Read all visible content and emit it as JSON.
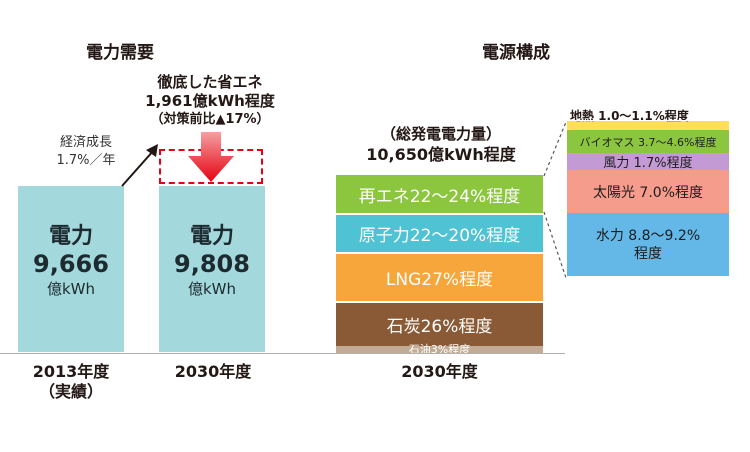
{
  "demand": {
    "title": "電力需要",
    "bars": [
      {
        "head": "電力",
        "value": "9,666",
        "unit": "億kWh",
        "year": "2013年度",
        "note": "（実績）"
      },
      {
        "head": "電力",
        "value": "9,808",
        "unit": "億kWh",
        "year": "2030年度",
        "note": ""
      }
    ],
    "growth": {
      "line1": "経済成長",
      "line2": "1.7%／年"
    },
    "saving": {
      "line1": "徹底した省エネ",
      "line2": "1,961億kWh程度",
      "line3": "（対策前比▲17%）"
    },
    "colors": {
      "bar": "#a3d9dc",
      "arrow": "#e60012"
    }
  },
  "supply": {
    "title": "電源構成",
    "total_line1": "（総発電電力量）",
    "total_line2": "10,650億kWh程度",
    "year": "2030年度",
    "segments": [
      {
        "label": "再エネ22〜24%程度",
        "color": "#8cc63f"
      },
      {
        "label": "原子力22〜20%程度",
        "color": "#4fc3d3"
      },
      {
        "label": "LNG27%程度",
        "color": "#f6a63a"
      },
      {
        "label": "石炭26%程度",
        "color": "#8a5a36"
      },
      {
        "label": "石油3%程度",
        "color": "#c3ac95"
      }
    ],
    "renewables": [
      {
        "label": "地熱 1.0〜1.1%程度",
        "color": "#ffdf5a"
      },
      {
        "label": "バイオマス 3.7〜4.6%程度",
        "color": "#8cc63f"
      },
      {
        "label": "風力 1.7%程度",
        "color": "#c39ad3"
      },
      {
        "label": "太陽光 7.0%程度",
        "color": "#f59c8c"
      },
      {
        "label": "水力 8.8〜9.2%",
        "label2": "程度",
        "color": "#63b8e8"
      }
    ]
  },
  "chart_data": [
    {
      "type": "bar",
      "title": "電力需要",
      "categories": [
        "2013年度（実績）",
        "2030年度"
      ],
      "values": [
        9666,
        9808
      ],
      "unit": "億kWh",
      "annotations": [
        "経済成長 1.7%／年",
        "徹底した省エネ 1,961億kWh程度（対策前比▲17%）"
      ]
    },
    {
      "type": "bar",
      "title": "電源構成",
      "categories": [
        "2030年度"
      ],
      "total": "10,650億kWh程度",
      "series": [
        {
          "name": "再エネ",
          "values": [
            "22〜24%"
          ]
        },
        {
          "name": "原子力",
          "values": [
            "22〜20%"
          ]
        },
        {
          "name": "LNG",
          "values": [
            "27%"
          ]
        },
        {
          "name": "石炭",
          "values": [
            "26%"
          ]
        },
        {
          "name": "石油",
          "values": [
            "3%"
          ]
        }
      ],
      "breakdown_renewables": [
        {
          "name": "地熱",
          "value": "1.0〜1.1%"
        },
        {
          "name": "バイオマス",
          "value": "3.7〜4.6%"
        },
        {
          "name": "風力",
          "value": "1.7%"
        },
        {
          "name": "太陽光",
          "value": "7.0%"
        },
        {
          "name": "水力",
          "value": "8.8〜9.2%"
        }
      ]
    }
  ]
}
